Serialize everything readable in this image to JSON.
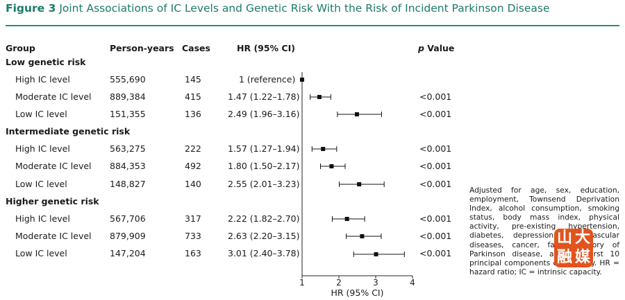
{
  "title": {
    "figure_label": "Figure 3",
    "text": "Joint Associations of IC Levels and Genetic Risk With the Risk of Incident Parkinson Disease"
  },
  "headers": {
    "group": "Group",
    "person_years": "Person-years",
    "cases": "Cases",
    "hr": "HR (95% CI)",
    "p": "p Value"
  },
  "groups": [
    {
      "name": "Low genetic risk",
      "rows": [
        {
          "level": "High IC level",
          "person_years": "555,690",
          "cases": "145",
          "hr_text": "1 (reference)",
          "p": ""
        },
        {
          "level": "Moderate IC level",
          "person_years": "889,384",
          "cases": "415",
          "hr_text": "1.47 (1.22–1.78)",
          "p": "<0.001"
        },
        {
          "level": "Low IC level",
          "person_years": "151,355",
          "cases": "136",
          "hr_text": "2.49 (1.96–3.16)",
          "p": "<0.001"
        }
      ]
    },
    {
      "name": "Intermediate genetic risk",
      "rows": [
        {
          "level": "High IC level",
          "person_years": "563,275",
          "cases": "222",
          "hr_text": "1.57 (1.27–1.94)",
          "p": "<0.001"
        },
        {
          "level": "Moderate IC level",
          "person_years": "884,353",
          "cases": "492",
          "hr_text": "1.80 (1.50–2.17)",
          "p": "<0.001"
        },
        {
          "level": "Low IC level",
          "person_years": "148,827",
          "cases": "140",
          "hr_text": "2.55 (2.01–3.23)",
          "p": "<0.001"
        }
      ]
    },
    {
      "name": "Higher genetic risk",
      "rows": [
        {
          "level": "High IC level",
          "person_years": "567,706",
          "cases": "317",
          "hr_text": "2.22 (1.82–2.70)",
          "p": "<0.001"
        },
        {
          "level": "Moderate IC level",
          "person_years": "879,909",
          "cases": "733",
          "hr_text": "2.63 (2.20–3.15)",
          "p": "<0.001"
        },
        {
          "level": "Low IC level",
          "person_years": "147,204",
          "cases": "163",
          "hr_text": "3.01 (2.40–3.78)",
          "p": "<0.001"
        }
      ]
    }
  ],
  "footnote": "Adjusted for age, sex, education, employment, Townsend Deprivation Index, alcohol consumption, smoking status, body mass index, physical activity, pre-existing hypertension, diabetes, depression, cardiovascular diseases, cancer, family history of Parkinson disease, and the first 10 principal components of ancestry. HR = hazard ratio; IC = intrinsic capacity.",
  "watermark": {
    "chars": [
      "山",
      "大",
      "融",
      "媒"
    ],
    "color": "#e2541e"
  },
  "chart_data": {
    "type": "scatter",
    "subtype": "forest_plot",
    "xlabel": "HR (95% CI)",
    "xlim": [
      1,
      4
    ],
    "xticks": [
      1,
      2,
      3,
      4
    ],
    "reference_line": 1,
    "marker_color": "#111111",
    "series": [
      {
        "name": "Low genetic risk",
        "points": [
          {
            "label": "High IC level",
            "hr": 1.0,
            "lo": 1.0,
            "hi": 1.0
          },
          {
            "label": "Moderate IC level",
            "hr": 1.47,
            "lo": 1.22,
            "hi": 1.78
          },
          {
            "label": "Low IC level",
            "hr": 2.49,
            "lo": 1.96,
            "hi": 3.16
          }
        ]
      },
      {
        "name": "Intermediate genetic risk",
        "points": [
          {
            "label": "High IC level",
            "hr": 1.57,
            "lo": 1.27,
            "hi": 1.94
          },
          {
            "label": "Moderate IC level",
            "hr": 1.8,
            "lo": 1.5,
            "hi": 2.17
          },
          {
            "label": "Low IC level",
            "hr": 2.55,
            "lo": 2.01,
            "hi": 3.23
          }
        ]
      },
      {
        "name": "Higher genetic risk",
        "points": [
          {
            "label": "High IC level",
            "hr": 2.22,
            "lo": 1.82,
            "hi": 2.7
          },
          {
            "label": "Moderate IC level",
            "hr": 2.63,
            "lo": 2.2,
            "hi": 3.15
          },
          {
            "label": "Low IC level",
            "hr": 3.01,
            "lo": 2.4,
            "hi": 3.78
          }
        ]
      }
    ]
  }
}
